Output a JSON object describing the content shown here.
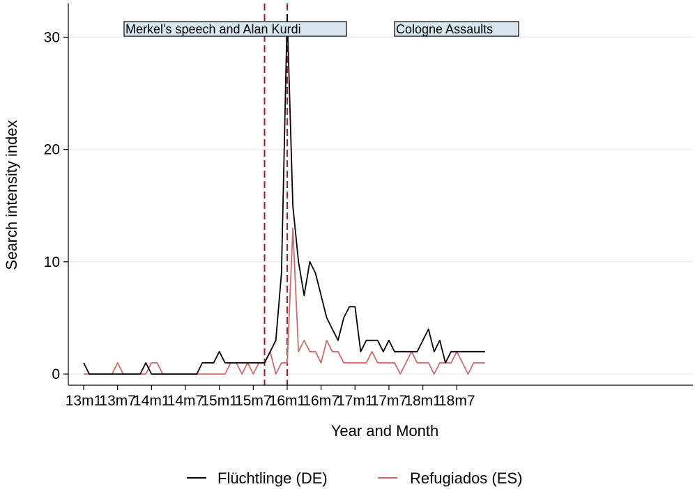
{
  "chart_data": {
    "type": "line",
    "title": "",
    "xlabel": "Year and Month",
    "ylabel": "Search intensity index",
    "x_tick_labels": [
      "13m1",
      "13m7",
      "14m1",
      "14m7",
      "15m1",
      "15m7",
      "16m1",
      "16m7",
      "17m1",
      "17m7",
      "18m1",
      "18m7"
    ],
    "x": [
      "13m1",
      "13m2",
      "13m3",
      "13m4",
      "13m5",
      "13m6",
      "13m7",
      "13m8",
      "13m9",
      "13m10",
      "13m11",
      "13m12",
      "14m1",
      "14m2",
      "14m3",
      "14m4",
      "14m5",
      "14m6",
      "14m7",
      "14m8",
      "14m9",
      "14m10",
      "14m11",
      "14m12",
      "15m1",
      "15m2",
      "15m3",
      "15m4",
      "15m5",
      "15m6",
      "15m7",
      "15m8",
      "15m9",
      "15m10",
      "15m11",
      "15m12",
      "16m1",
      "16m2",
      "16m3",
      "16m4",
      "16m5",
      "16m6",
      "16m7",
      "16m8",
      "16m9",
      "16m10",
      "16m11",
      "16m12",
      "17m1",
      "17m2",
      "17m3",
      "17m4",
      "17m5",
      "17m6",
      "17m7",
      "17m8",
      "17m9",
      "17m10",
      "17m11",
      "17m12",
      "18m1",
      "18m2",
      "18m3",
      "18m4",
      "18m5",
      "18m6",
      "18m7",
      "18m8",
      "18m9",
      "18m10",
      "18m11",
      "18m12"
    ],
    "y_ticks": [
      0,
      10,
      20,
      30
    ],
    "ylim": [
      0,
      33
    ],
    "grid": true,
    "legend_position": "bottom",
    "series": [
      {
        "name": "Flüchtlinge (DE)",
        "color": "#000000",
        "values": [
          1,
          0,
          0,
          0,
          0,
          0,
          0,
          0,
          0,
          0,
          0,
          1,
          0,
          0,
          0,
          0,
          0,
          0,
          0,
          0,
          0,
          1,
          1,
          1,
          2,
          1,
          1,
          1,
          1,
          1,
          1,
          1,
          1,
          2,
          3,
          9,
          32,
          15,
          10,
          7,
          10,
          9,
          7,
          5,
          4,
          3,
          5,
          6,
          6,
          2,
          3,
          3,
          3,
          2,
          3,
          2,
          2,
          2,
          2,
          2,
          3,
          4,
          2,
          3,
          1,
          2,
          2,
          2,
          2,
          2,
          2,
          2
        ]
      },
      {
        "name": "Refugiados (ES)",
        "color": "#cd6b6b",
        "values": [
          0,
          0,
          0,
          0,
          0,
          0,
          1,
          0,
          0,
          0,
          0,
          0,
          1,
          1,
          0,
          0,
          0,
          0,
          0,
          0,
          0,
          0,
          0,
          0,
          0,
          0,
          1,
          1,
          0,
          1,
          0,
          1,
          1,
          2,
          0,
          1,
          1,
          13,
          2,
          3,
          2,
          2,
          1,
          3,
          2,
          2,
          1,
          1,
          1,
          1,
          1,
          2,
          1,
          1,
          1,
          1,
          0,
          1,
          2,
          1,
          1,
          1,
          0,
          1,
          1,
          1,
          2,
          1,
          0,
          1,
          1,
          1
        ]
      }
    ],
    "vlines": [
      {
        "x": "15m9",
        "color": "#a31d2a",
        "style": "dashed"
      },
      {
        "x": "16m1",
        "color": "#a31d2a",
        "style": "dashed"
      }
    ],
    "annotations": [
      {
        "text": "Merkel's speech and Alan Kurdi"
      },
      {
        "text": "Cologne Assaults"
      }
    ]
  }
}
